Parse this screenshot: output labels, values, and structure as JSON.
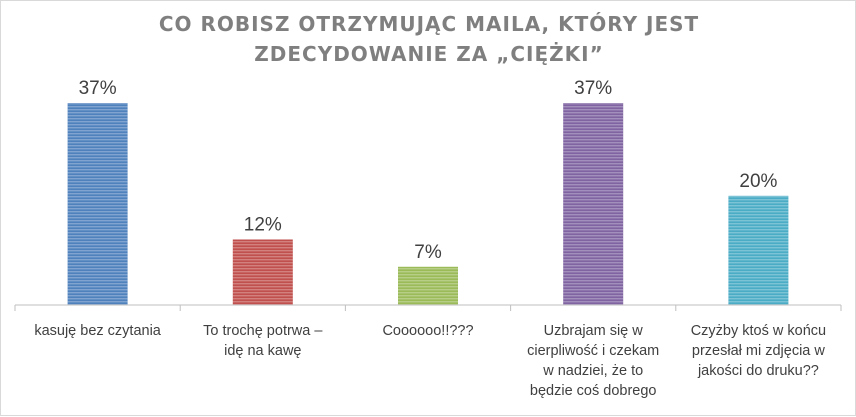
{
  "chart_data": {
    "type": "bar",
    "title_lines": [
      "CO ROBISZ OTRZYMUJĄC MAILA, KTÓRY JEST",
      "ZDECYDOWANIE ZA „CIĘŻKI”"
    ],
    "categories": [
      [
        "kasuję bez czytania"
      ],
      [
        "To trochę potrwa –",
        "idę na kawę"
      ],
      [
        "Coooooo!!???"
      ],
      [
        "Uzbrajam się w",
        "cierpliwość i czekam",
        "w nadziei, że to",
        "będzie coś dobrego"
      ],
      [
        "Czyżby ktoś w końcu",
        "przesłał mi zdjęcia w",
        "jakości do druku??"
      ]
    ],
    "values": [
      37,
      12,
      7,
      37,
      20
    ],
    "data_labels": [
      "37%",
      "12%",
      "7%",
      "37%",
      "20%"
    ],
    "colors": [
      "#4f81bd",
      "#c0504d",
      "#9bbb59",
      "#8064a2",
      "#4bacc6"
    ],
    "ylim": [
      0,
      37
    ],
    "grid": false,
    "legend": "none"
  }
}
